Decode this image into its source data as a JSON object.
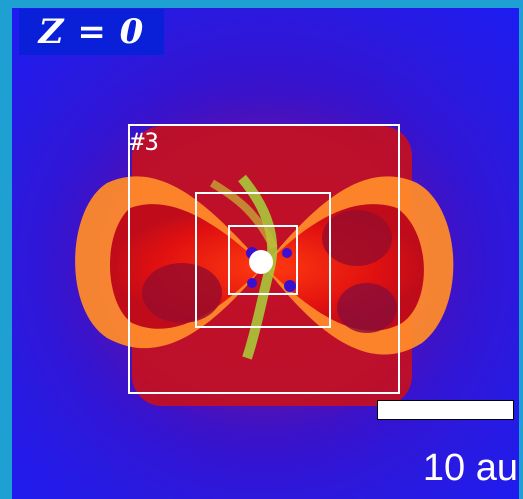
{
  "title_label": "Z = 0",
  "box_label": "#3",
  "scale_bar": {
    "label": "10 au"
  },
  "colors": {
    "background": "#1ea0d2",
    "outer_gas": "#2a1ae0",
    "envelope": "#cc1010",
    "shell": "#ff8a2a",
    "filament": "#a8c83a",
    "box_outline": "#ffffff"
  }
}
